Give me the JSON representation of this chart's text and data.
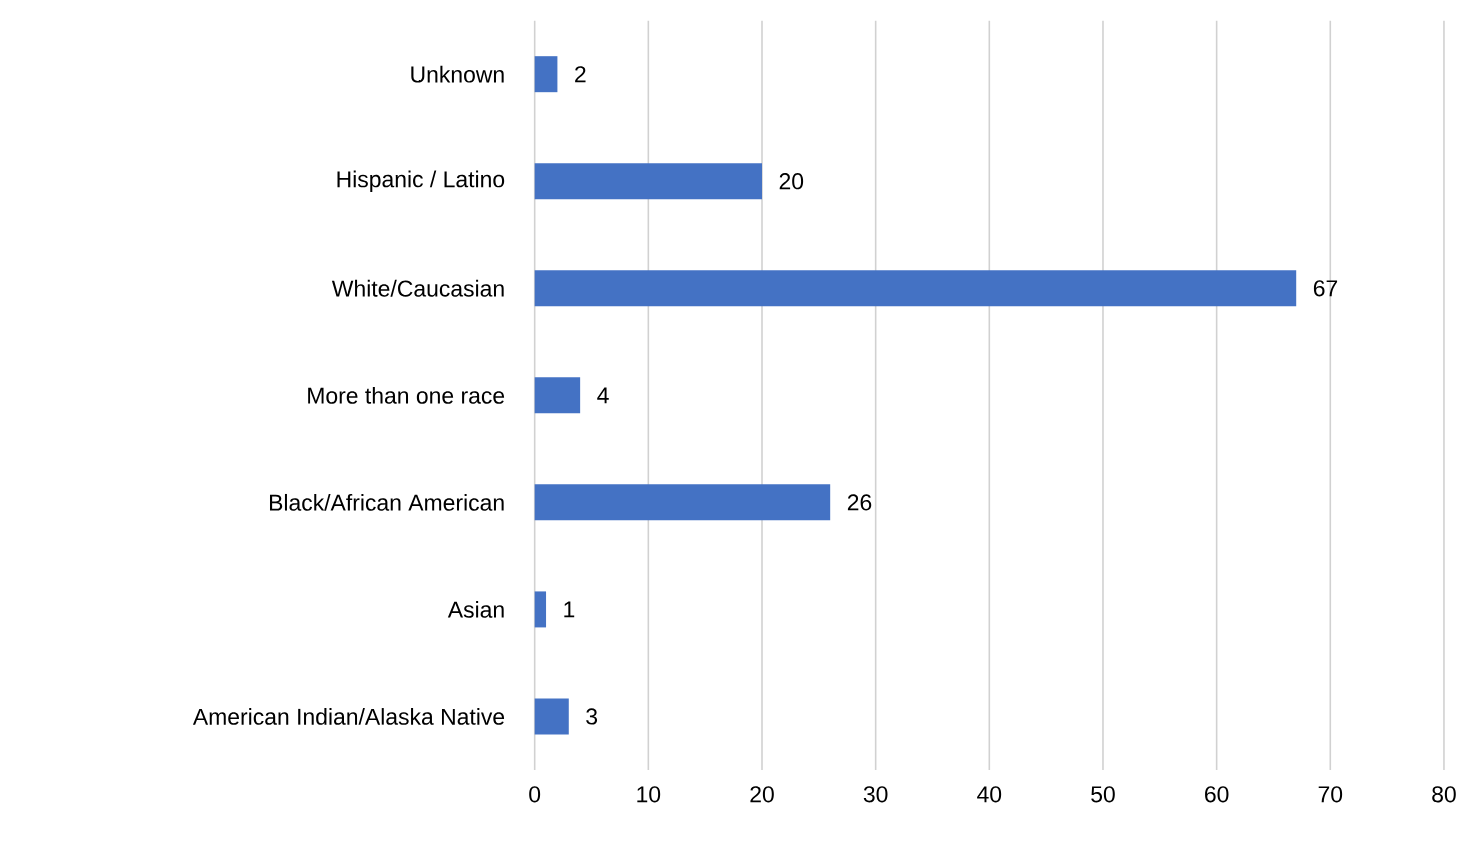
{
  "chart_data": {
    "type": "bar",
    "orientation": "horizontal",
    "categories": [
      "Unknown",
      "Hispanic / Latino",
      "White/Caucasian",
      "More than one race",
      "Black/African American",
      "Asian",
      "American Indian/Alaska Native"
    ],
    "values": [
      2,
      20,
      67,
      4,
      26,
      1,
      3
    ],
    "color": "#4472c4",
    "xlim": [
      0,
      80
    ],
    "xticks": [
      0,
      10,
      20,
      30,
      40,
      50,
      60,
      70,
      80
    ],
    "grid": "x",
    "data_labels": true
  }
}
